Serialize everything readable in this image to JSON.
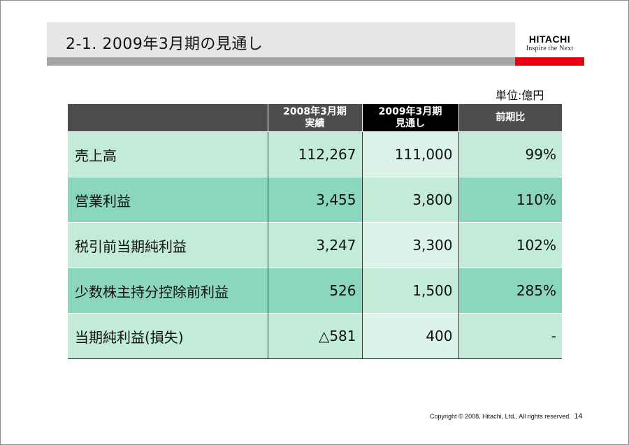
{
  "title": "2-1. 2009年3月期の見通し",
  "logo": {
    "name": "HITACHI",
    "tagline": "Inspire the Next"
  },
  "unit": "単位:億円",
  "table": {
    "headers": [
      {
        "line1": "",
        "line2": ""
      },
      {
        "line1": "2008年3月期",
        "line2": "実績"
      },
      {
        "line1": "2009年3月期",
        "line2": "見通し"
      },
      {
        "line1": "前期比",
        "line2": ""
      }
    ],
    "rows": [
      {
        "label": "売上高",
        "fy2008": "112,267",
        "fy2009": "111,000",
        "ratio": "99%"
      },
      {
        "label": "営業利益",
        "fy2008": "3,455",
        "fy2009": "3,800",
        "ratio": "110%"
      },
      {
        "label": "税引前当期純利益",
        "fy2008": "3,247",
        "fy2009": "3,300",
        "ratio": "102%"
      },
      {
        "label": "少数株主持分控除前利益",
        "fy2008": "526",
        "fy2009": "1,500",
        "ratio": "285%"
      },
      {
        "label": "当期純利益(損失)",
        "fy2008": "△581",
        "fy2009": "400",
        "ratio": "-"
      }
    ]
  },
  "footer": {
    "copyright": "Copyright © 2008, Hitachi, Ltd., All rights reserved.",
    "page": "14"
  },
  "colors": {
    "header_bg": "#4d4d4d",
    "header_highlight": "#000000",
    "row_light": "#c2ecd8",
    "row_dark": "#8bd6bf",
    "forecast_col": "#dcf3ea",
    "accent_red": "#e60012"
  }
}
